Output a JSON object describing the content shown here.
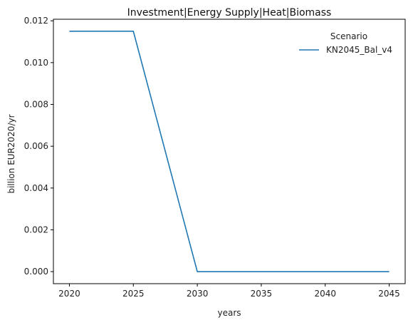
{
  "chart_data": {
    "type": "line",
    "title": "Investment|Energy Supply|Heat|Biomass",
    "xlabel": "years",
    "ylabel": "billion EUR2020/yr",
    "x": [
      2020,
      2025,
      2030,
      2035,
      2040,
      2045
    ],
    "xticks": [
      2020,
      2025,
      2030,
      2035,
      2040,
      2045
    ],
    "yticks": [
      0.0,
      0.002,
      0.004,
      0.006,
      0.008,
      0.01,
      0.012
    ],
    "ytick_labels": [
      "0.000",
      "0.002",
      "0.004",
      "0.006",
      "0.008",
      "0.010",
      "0.012"
    ],
    "xlim": [
      2018.75,
      2046.25
    ],
    "ylim": [
      -0.000575,
      0.012075
    ],
    "grid": false,
    "legend": {
      "title": "Scenario",
      "placement": "top-right"
    },
    "series": [
      {
        "name": "KN2045_Bal_v4",
        "color": "#1f77b4",
        "values": [
          0.0115,
          0.0115,
          0.0,
          0.0,
          0.0,
          0.0
        ]
      }
    ]
  }
}
